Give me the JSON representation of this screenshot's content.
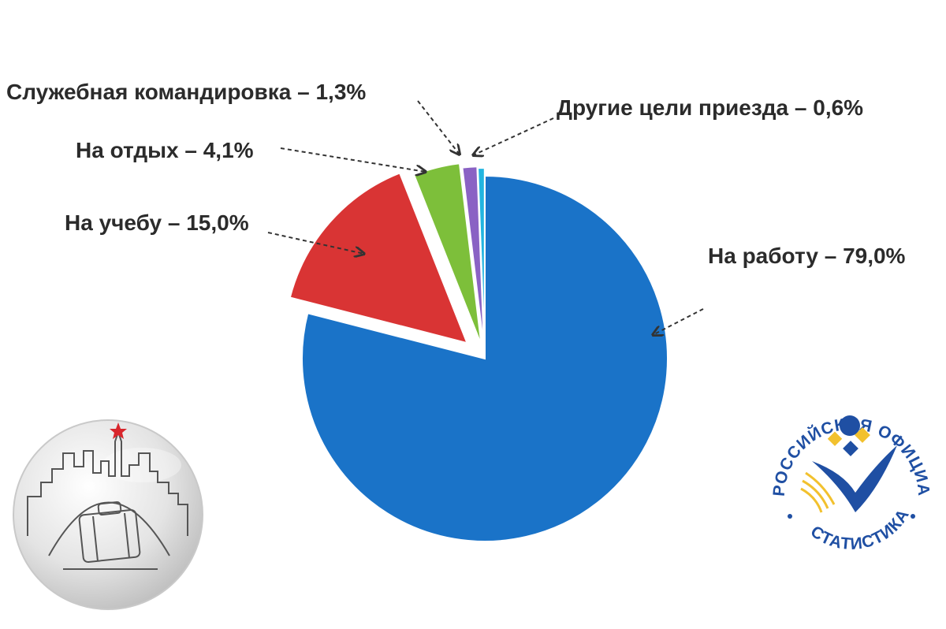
{
  "chart_data": {
    "type": "pie",
    "title": "",
    "slices": [
      {
        "label": "На работу",
        "value": 79.0,
        "text": "На работу – 79,0%",
        "color": "#1a73c8"
      },
      {
        "label": "На учебу",
        "value": 15.0,
        "text": "На учебу – 15,0%",
        "color": "#d93434"
      },
      {
        "label": "На отдых",
        "value": 4.1,
        "text": "На отдых – 4,1%",
        "color": "#7dbf3a"
      },
      {
        "label": "Служебная командировка",
        "value": 1.3,
        "text": "Служебная командировка – 1,3%",
        "color": "#8a62c4"
      },
      {
        "label": "Другие цели приезда",
        "value": 0.6,
        "text": "Другие цели приезда – 0,6%",
        "color": "#22b5e0"
      }
    ],
    "legend": "none"
  },
  "logos": {
    "rosstat": {
      "name": "rosstat-logo",
      "text": "РОССИЙСКАЯ ОФИЦИАЛЬНАЯ СТАТИСТИКА",
      "color": "#1f4fa3",
      "accent": "#f2c12e"
    },
    "city": {
      "name": "city-suitcase-logo",
      "star_color": "#d8262c"
    }
  }
}
